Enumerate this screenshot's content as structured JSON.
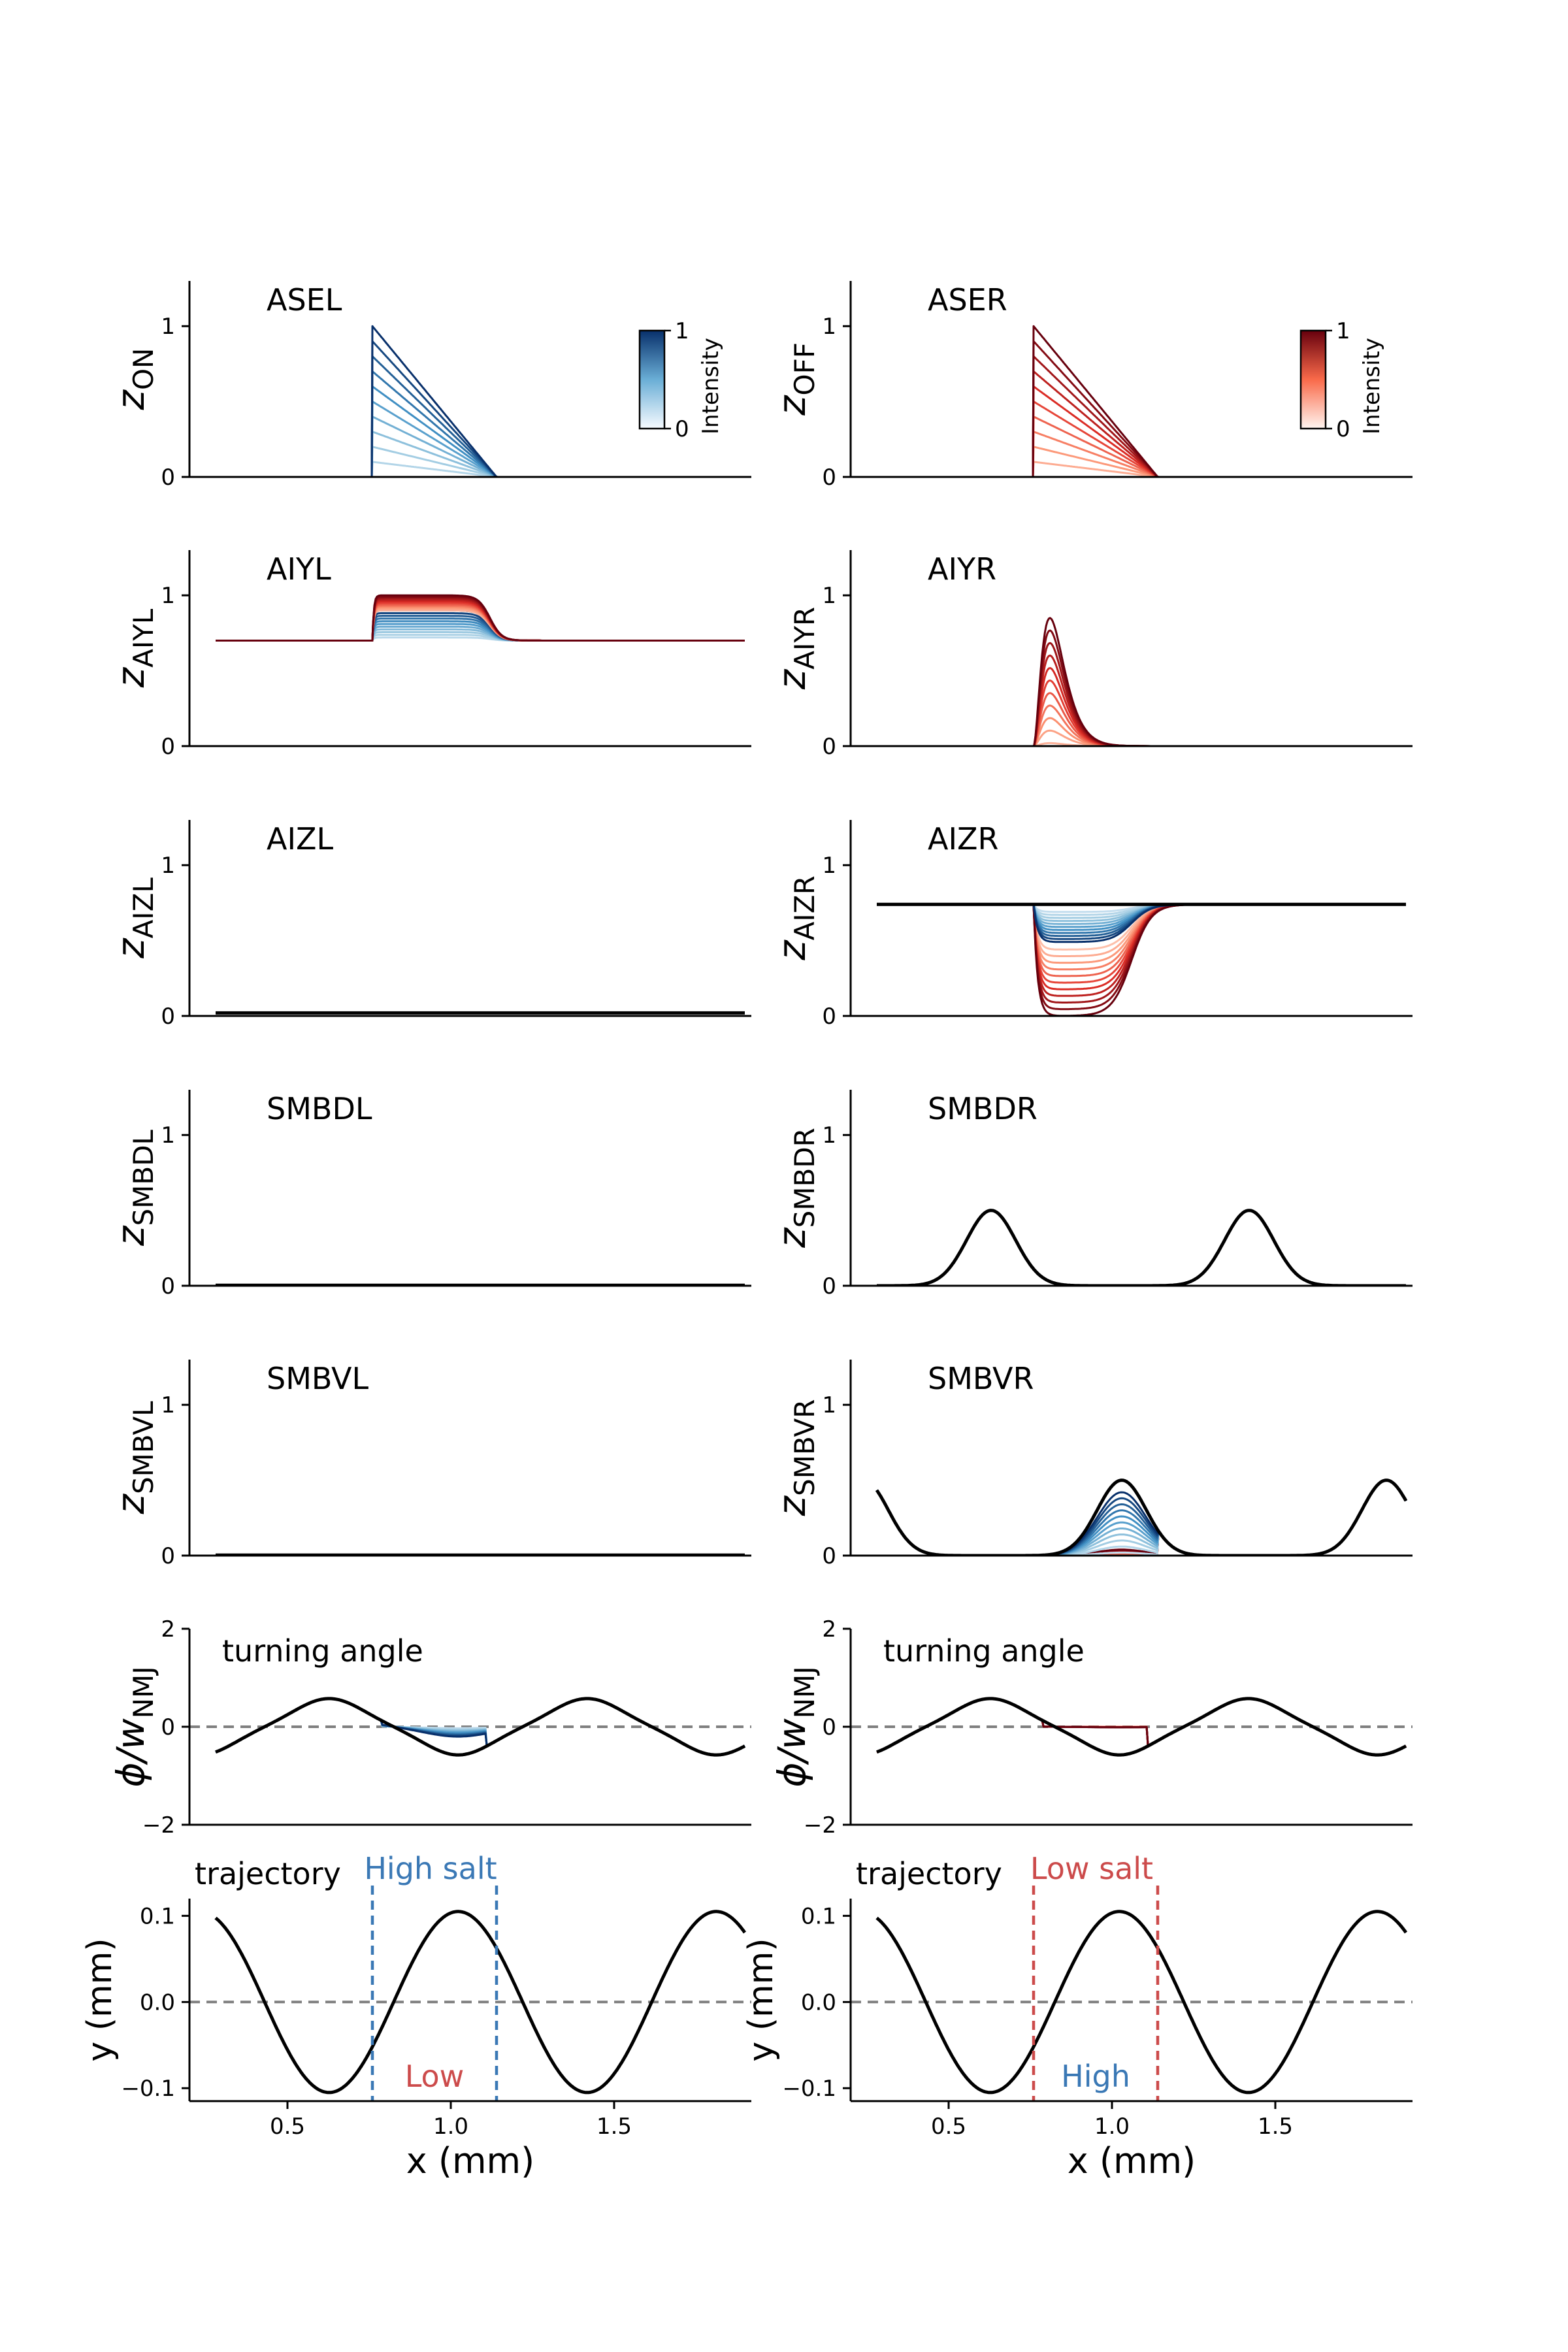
{
  "chart_data": {
    "type": "line",
    "x_range": [
      0.2,
      1.92
    ],
    "x_start": 0.28,
    "x_end": 1.9,
    "stimulus_on": 0.76,
    "stimulus_off": 1.14,
    "colorbars": [
      {
        "label": "Intensity",
        "ticks": [
          "0",
          "1"
        ],
        "cmap": "Blues"
      },
      {
        "label": "Intensity",
        "ticks": [
          "0",
          "1"
        ],
        "cmap": "Reds"
      }
    ],
    "panels": [
      {
        "id": "asel",
        "title": "ASEL",
        "ylabel_main": "z",
        "ylabel_sub": "ON",
        "yticks": [
          "0",
          "1"
        ],
        "ylim": [
          0,
          1.3
        ],
        "col": 0,
        "row": 0
      },
      {
        "id": "aser",
        "title": "ASER",
        "ylabel_main": "z",
        "ylabel_sub": "OFF",
        "yticks": [
          "0",
          "1"
        ],
        "ylim": [
          0,
          1.3
        ],
        "col": 1,
        "row": 0
      },
      {
        "id": "aiyl",
        "title": "AIYL",
        "ylabel_main": "z",
        "ylabel_sub": "AIYL",
        "yticks": [
          "0",
          "1"
        ],
        "ylim": [
          0,
          1.3
        ],
        "col": 0,
        "row": 1
      },
      {
        "id": "aiyr",
        "title": "AIYR",
        "ylabel_main": "z",
        "ylabel_sub": "AIYR",
        "yticks": [
          "0",
          "1"
        ],
        "ylim": [
          0,
          1.3
        ],
        "col": 1,
        "row": 1
      },
      {
        "id": "aizl",
        "title": "AIZL",
        "ylabel_main": "z",
        "ylabel_sub": "AIZL",
        "yticks": [
          "0",
          "1"
        ],
        "ylim": [
          0,
          1.3
        ],
        "col": 0,
        "row": 2
      },
      {
        "id": "aizr",
        "title": "AIZR",
        "ylabel_main": "z",
        "ylabel_sub": "AIZR",
        "yticks": [
          "0",
          "1"
        ],
        "ylim": [
          0,
          1.3
        ],
        "col": 1,
        "row": 2
      },
      {
        "id": "smbdl",
        "title": "SMBDL",
        "ylabel_main": "z",
        "ylabel_sub": "SMBDL",
        "yticks": [
          "0",
          "1"
        ],
        "ylim": [
          0,
          1.3
        ],
        "col": 0,
        "row": 3
      },
      {
        "id": "smbdr",
        "title": "SMBDR",
        "ylabel_main": "z",
        "ylabel_sub": "SMBDR",
        "yticks": [
          "0",
          "1"
        ],
        "ylim": [
          0,
          1.3
        ],
        "col": 1,
        "row": 3
      },
      {
        "id": "smbvl",
        "title": "SMBVL",
        "ylabel_main": "z",
        "ylabel_sub": "SMBVL",
        "yticks": [
          "0",
          "1"
        ],
        "ylim": [
          0,
          1.3
        ],
        "col": 0,
        "row": 4
      },
      {
        "id": "smbvr",
        "title": "SMBVR",
        "ylabel_main": "z",
        "ylabel_sub": "SMBVR",
        "yticks": [
          "0",
          "1"
        ],
        "ylim": [
          0,
          1.3
        ],
        "col": 1,
        "row": 4
      },
      {
        "id": "angle_l",
        "title": "turning angle",
        "ylabel_main": "ϕ/w",
        "ylabel_sub": "NMJ",
        "yticks": [
          "−2",
          "0",
          "2"
        ],
        "ylim": [
          -2,
          2
        ],
        "col": 0,
        "row": 5
      },
      {
        "id": "angle_r",
        "title": "turning angle",
        "ylabel_main": "ϕ/w",
        "ylabel_sub": "NMJ",
        "yticks": [
          "−2",
          "0",
          "2"
        ],
        "ylim": [
          -2,
          2
        ],
        "col": 1,
        "row": 5
      },
      {
        "id": "traj_l",
        "title": "trajectory",
        "ylabel": "y (mm)",
        "yticks": [
          "−0.1",
          "0.0",
          "0.1"
        ],
        "ylim": [
          -0.115,
          0.12
        ],
        "col": 0,
        "row": 6,
        "xticks": [
          "0.5",
          "1.0",
          "1.5"
        ],
        "xlabel": "x (mm)",
        "inside_label": "High salt",
        "outside_label": "Low",
        "zone_color": "#3a78b5",
        "outside_color": "#cc4b4b"
      },
      {
        "id": "traj_r",
        "title": "trajectory",
        "ylabel": "y (mm)",
        "yticks": [
          "−0.1",
          "0.0",
          "0.1"
        ],
        "ylim": [
          -0.115,
          0.12
        ],
        "col": 1,
        "row": 6,
        "xticks": [
          "0.5",
          "1.0",
          "1.5"
        ],
        "xlabel": "x (mm)",
        "inside_label": "Low salt",
        "outside_label": "High",
        "zone_color": "#cc4b4b",
        "outside_color": "#3a78b5"
      }
    ],
    "series": {
      "trajectory": {
        "amplitude": 0.105,
        "wavelength": 0.79,
        "phase_x": 0.43
      },
      "angle": {
        "amplitude": 0.5,
        "shifted_peaks_x": [
          0.63,
          1.42
        ],
        "trough_x": [
          1.03,
          1.82
        ]
      },
      "smb_peak_height": 0.5,
      "smbdr_peaks_x": [
        0.63,
        1.42
      ],
      "smbvr_peaks_x": [
        1.03,
        1.84
      ],
      "aiyl_baseline": 0.7,
      "aizr_baseline": 0.74,
      "aizl_baseline": 0.02,
      "intensity_levels": 11
    }
  }
}
